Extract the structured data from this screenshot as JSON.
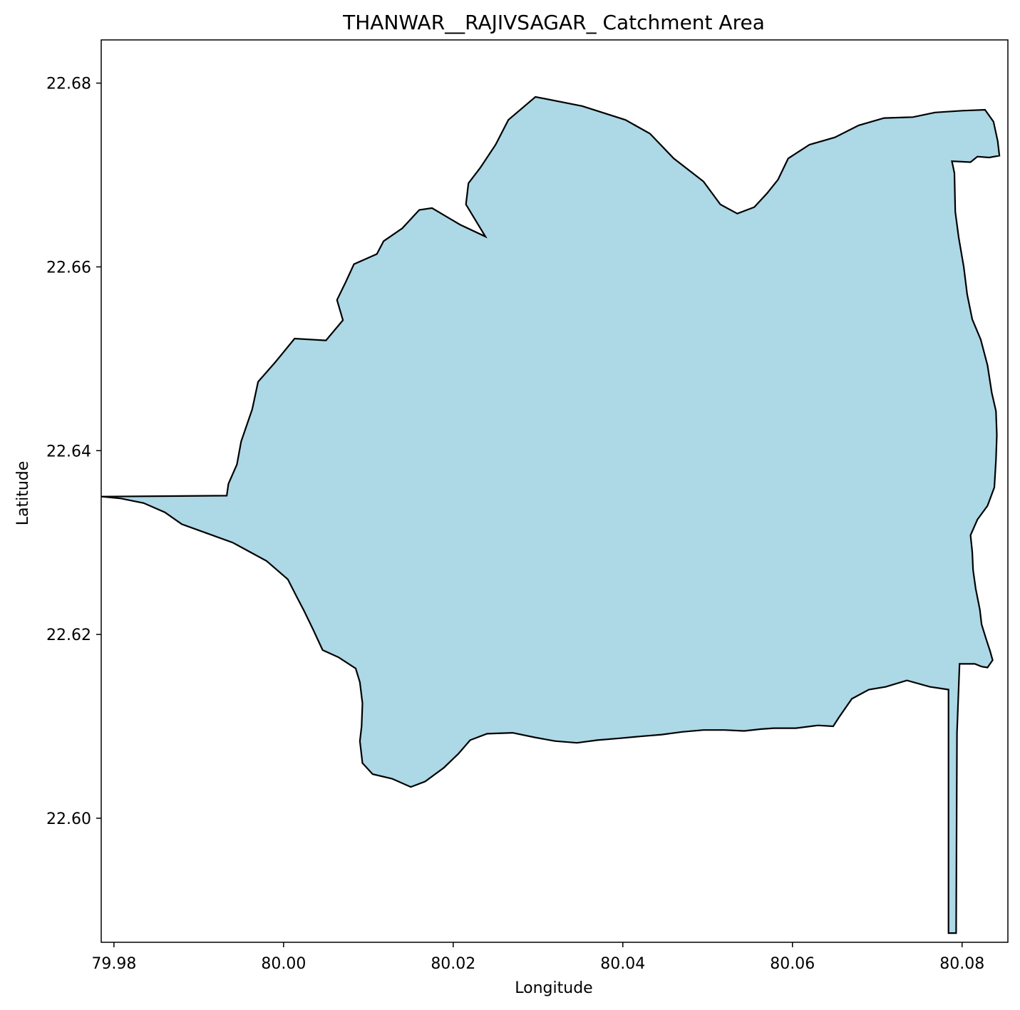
{
  "chart_data": {
    "type": "map",
    "title": "THANWAR__RAJIVSAGAR_ Catchment Area",
    "xlabel": "Longitude",
    "ylabel": "Latitude",
    "xlim": [
      79.9785,
      80.0854
    ],
    "ylim": [
      22.5865,
      22.6847
    ],
    "x_ticks": [
      {
        "value": 79.98,
        "label": "79.98"
      },
      {
        "value": 80.0,
        "label": "80.00"
      },
      {
        "value": 80.02,
        "label": "80.02"
      },
      {
        "value": 80.04,
        "label": "80.04"
      },
      {
        "value": 80.06,
        "label": "80.06"
      },
      {
        "value": 80.08,
        "label": "80.08"
      }
    ],
    "y_ticks": [
      {
        "value": 22.6,
        "label": "22.60"
      },
      {
        "value": 22.62,
        "label": "22.62"
      },
      {
        "value": 22.64,
        "label": "22.64"
      },
      {
        "value": 22.66,
        "label": "22.66"
      },
      {
        "value": 22.68,
        "label": "22.68"
      }
    ],
    "grid": false,
    "fill_color": "#add8e6",
    "edge_color": "#000000",
    "polygon": [
      [
        79.9933,
        22.6351
      ],
      [
        79.9935,
        22.6364
      ],
      [
        79.9945,
        22.6385
      ],
      [
        79.995,
        22.641
      ],
      [
        79.9963,
        22.6445
      ],
      [
        79.997,
        22.6475
      ],
      [
        79.999,
        22.6496
      ],
      [
        79.9998,
        22.6505
      ],
      [
        80.0013,
        22.6522
      ],
      [
        80.005,
        22.652
      ],
      [
        80.007,
        22.6542
      ],
      [
        80.0063,
        22.6564
      ],
      [
        80.0073,
        22.6583
      ],
      [
        80.0083,
        22.6603
      ],
      [
        80.011,
        22.6614
      ],
      [
        80.0118,
        22.6628
      ],
      [
        80.014,
        22.6642
      ],
      [
        80.016,
        22.6662
      ],
      [
        80.0175,
        22.6664
      ],
      [
        80.0208,
        22.6646
      ],
      [
        80.0238,
        22.6633
      ],
      [
        80.0215,
        22.6668
      ],
      [
        80.0218,
        22.6691
      ],
      [
        80.0232,
        22.6708
      ],
      [
        80.025,
        22.6733
      ],
      [
        80.0265,
        22.676
      ],
      [
        80.0297,
        22.6785
      ],
      [
        80.0352,
        22.6775
      ],
      [
        80.0403,
        22.676
      ],
      [
        80.0432,
        22.6745
      ],
      [
        80.046,
        22.6718
      ],
      [
        80.0495,
        22.6693
      ],
      [
        80.0515,
        22.6668
      ],
      [
        80.0535,
        22.6658
      ],
      [
        80.0555,
        22.6665
      ],
      [
        80.057,
        22.668
      ],
      [
        80.0583,
        22.6695
      ],
      [
        80.0595,
        22.6718
      ],
      [
        80.062,
        22.6733
      ],
      [
        80.065,
        22.6741
      ],
      [
        80.0678,
        22.6754
      ],
      [
        80.0708,
        22.6762
      ],
      [
        80.0742,
        22.6763
      ],
      [
        80.0768,
        22.6768
      ],
      [
        80.08,
        22.677
      ],
      [
        80.0827,
        22.6771
      ],
      [
        80.0837,
        22.6758
      ],
      [
        80.0842,
        22.6737
      ],
      [
        80.0844,
        22.6721
      ],
      [
        80.0832,
        22.6719
      ],
      [
        80.0818,
        22.672
      ],
      [
        80.081,
        22.6714
      ],
      [
        80.0788,
        22.6715
      ],
      [
        80.0791,
        22.6702
      ],
      [
        80.0792,
        22.666
      ],
      [
        80.0796,
        22.6632
      ],
      [
        80.0802,
        22.66
      ],
      [
        80.0806,
        22.657
      ],
      [
        80.0812,
        22.6543
      ],
      [
        80.0822,
        22.6521
      ],
      [
        80.083,
        22.6493
      ],
      [
        80.0835,
        22.6463
      ],
      [
        80.084,
        22.6443
      ],
      [
        80.0841,
        22.6417
      ],
      [
        80.084,
        22.639
      ],
      [
        80.0838,
        22.636
      ],
      [
        80.083,
        22.634
      ],
      [
        80.0818,
        22.6325
      ],
      [
        80.081,
        22.6308
      ],
      [
        80.0812,
        22.629
      ],
      [
        80.0813,
        22.627
      ],
      [
        80.0816,
        22.625
      ],
      [
        80.0821,
        22.6227
      ],
      [
        80.0823,
        22.6211
      ],
      [
        80.0828,
        22.6196
      ],
      [
        80.0833,
        22.6182
      ],
      [
        80.0836,
        22.6172
      ],
      [
        80.083,
        22.6164
      ],
      [
        80.0823,
        22.6165
      ],
      [
        80.0815,
        22.6168
      ],
      [
        80.0797,
        22.6168
      ],
      [
        80.0794,
        22.6093
      ],
      [
        80.0793,
        22.5875
      ],
      [
        80.0784,
        22.5875
      ],
      [
        80.0784,
        22.614
      ],
      [
        80.0762,
        22.6143
      ],
      [
        80.0735,
        22.615
      ],
      [
        80.071,
        22.6143
      ],
      [
        80.069,
        22.614
      ],
      [
        80.067,
        22.613
      ],
      [
        80.0655,
        22.611
      ],
      [
        80.0648,
        22.61
      ],
      [
        80.063,
        22.6101
      ],
      [
        80.0604,
        22.6098
      ],
      [
        80.0578,
        22.6098
      ],
      [
        80.0563,
        22.6097
      ],
      [
        80.0543,
        22.6095
      ],
      [
        80.052,
        22.6096
      ],
      [
        80.0495,
        22.6096
      ],
      [
        80.047,
        22.6094
      ],
      [
        80.0446,
        22.6091
      ],
      [
        80.042,
        22.6089
      ],
      [
        80.0396,
        22.6087
      ],
      [
        80.037,
        22.6085
      ],
      [
        80.0346,
        22.6082
      ],
      [
        80.032,
        22.6084
      ],
      [
        80.0296,
        22.6088
      ],
      [
        80.027,
        22.6093
      ],
      [
        80.024,
        22.6092
      ],
      [
        80.022,
        22.6085
      ],
      [
        80.0206,
        22.607
      ],
      [
        80.0189,
        22.6055
      ],
      [
        80.0167,
        22.604
      ],
      [
        80.015,
        22.6034
      ],
      [
        80.0128,
        22.6043
      ],
      [
        80.0105,
        22.6048
      ],
      [
        80.0093,
        22.606
      ],
      [
        80.009,
        22.6084
      ],
      [
        80.0092,
        22.61
      ],
      [
        80.0093,
        22.6125
      ],
      [
        80.009,
        22.6148
      ],
      [
        80.0085,
        22.6163
      ],
      [
        80.0065,
        22.6175
      ],
      [
        80.0046,
        22.6183
      ],
      [
        80.0035,
        22.6205
      ],
      [
        80.0024,
        22.6226
      ],
      [
        80.0016,
        22.624
      ],
      [
        80.0005,
        22.626
      ],
      [
        79.998,
        22.628
      ],
      [
        79.996,
        22.629
      ],
      [
        79.994,
        22.63
      ],
      [
        79.991,
        22.631
      ],
      [
        79.988,
        22.632
      ],
      [
        79.986,
        22.6333
      ],
      [
        79.9835,
        22.6343
      ],
      [
        79.9808,
        22.6348
      ],
      [
        79.9785,
        22.635
      ],
      [
        79.9933,
        22.6351
      ]
    ]
  }
}
